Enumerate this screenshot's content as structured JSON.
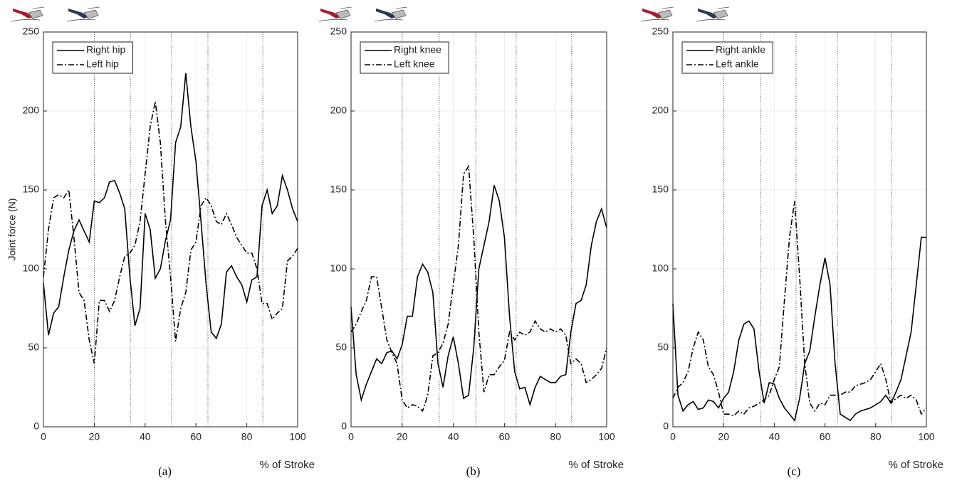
{
  "chart_data": [
    {
      "type": "line",
      "panel_label": "(a)",
      "xlabel": "% of Stroke",
      "ylabel": "Joint force (N)",
      "xlim": [
        0,
        100
      ],
      "ylim": [
        0,
        250
      ],
      "xticks": [
        0,
        20,
        40,
        60,
        80,
        100
      ],
      "yticks": [
        0,
        50,
        100,
        150,
        200,
        250
      ],
      "grid": true,
      "legend": "upper left",
      "phase_lines": [
        20,
        34.2,
        50.4,
        64.7,
        86.3
      ],
      "x": [
        0,
        2,
        4,
        6,
        8,
        10,
        12,
        14,
        16,
        18,
        20,
        22,
        24,
        26,
        28,
        30,
        32,
        34,
        36,
        38,
        40,
        42,
        44,
        46,
        48,
        50,
        52,
        54,
        56,
        58,
        60,
        62,
        64,
        66,
        68,
        70,
        72,
        74,
        76,
        78,
        80,
        82,
        84,
        86,
        88,
        90,
        92,
        94,
        96,
        98,
        100
      ],
      "series": [
        {
          "name": "Right hip",
          "color": "#000000",
          "linestyle": "solid",
          "values": [
            91,
            58,
            72,
            76,
            95,
            112,
            124,
            131,
            124,
            117,
            143,
            142,
            145,
            155,
            156,
            148,
            138,
            95,
            64,
            75,
            135,
            125,
            94,
            100,
            118,
            131,
            180,
            190,
            224,
            190,
            168,
            130,
            90,
            60,
            56,
            65,
            98,
            102,
            95,
            90,
            79,
            93,
            95,
            140,
            150,
            135,
            140,
            159,
            150,
            138,
            130
          ]
        },
        {
          "name": "Left hip",
          "color": "#000000",
          "linestyle": "dashdot",
          "values": [
            95,
            125,
            145,
            147,
            145,
            150,
            120,
            85,
            80,
            55,
            40,
            80,
            80,
            73,
            80,
            95,
            108,
            110,
            115,
            130,
            160,
            190,
            206,
            180,
            130,
            95,
            54,
            75,
            85,
            112,
            117,
            140,
            145,
            140,
            130,
            128,
            135,
            128,
            120,
            115,
            110,
            110,
            100,
            78,
            78,
            68,
            72,
            75,
            105,
            108,
            113
          ]
        }
      ]
    },
    {
      "type": "line",
      "panel_label": "(b)",
      "xlabel": "% of Stroke",
      "xlim": [
        0,
        100
      ],
      "ylim": [
        0,
        250
      ],
      "xticks": [
        0,
        20,
        40,
        60,
        80,
        100
      ],
      "yticks": [
        0,
        50,
        100,
        150,
        200,
        250
      ],
      "grid": true,
      "legend": "upper left",
      "phase_lines": [
        20,
        34.5,
        48.8,
        64.6,
        86.3
      ],
      "x": [
        0,
        2,
        4,
        6,
        8,
        10,
        12,
        14,
        16,
        18,
        20,
        22,
        24,
        26,
        28,
        30,
        32,
        34,
        36,
        38,
        40,
        42,
        44,
        46,
        48,
        50,
        52,
        54,
        56,
        58,
        60,
        62,
        64,
        66,
        68,
        70,
        72,
        74,
        76,
        78,
        80,
        82,
        84,
        86,
        88,
        90,
        92,
        94,
        96,
        98,
        100
      ],
      "series": [
        {
          "name": "Right knee",
          "color": "#000000",
          "linestyle": "solid",
          "values": [
            76,
            33,
            17,
            27,
            35,
            43,
            40,
            47,
            48,
            43,
            52,
            70,
            70,
            95,
            103,
            98,
            85,
            40,
            25,
            45,
            57,
            40,
            18,
            20,
            50,
            100,
            115,
            130,
            153,
            143,
            120,
            70,
            35,
            24,
            25,
            14,
            25,
            32,
            30,
            28,
            28,
            32,
            33,
            60,
            78,
            80,
            90,
            115,
            130,
            138,
            126
          ]
        },
        {
          "name": "Left knee",
          "color": "#000000",
          "linestyle": "dashdot",
          "values": [
            60,
            65,
            73,
            80,
            95,
            95,
            75,
            55,
            47,
            40,
            17,
            12,
            14,
            13,
            10,
            20,
            45,
            47,
            53,
            65,
            90,
            115,
            160,
            165,
            120,
            60,
            22,
            33,
            33,
            38,
            42,
            60,
            55,
            60,
            58,
            60,
            67,
            62,
            60,
            62,
            60,
            62,
            58,
            40,
            43,
            40,
            28,
            30,
            33,
            37,
            50
          ]
        }
      ]
    },
    {
      "type": "line",
      "panel_label": "(c)",
      "xlabel": "% of Stroke",
      "xlim": [
        0,
        100
      ],
      "ylim": [
        0,
        250
      ],
      "xticks": [
        0,
        20,
        40,
        60,
        80,
        100
      ],
      "yticks": [
        0,
        50,
        100,
        150,
        200,
        250
      ],
      "grid": true,
      "legend": "upper left",
      "phase_lines": [
        20,
        34.6,
        48.6,
        64.9,
        86.2
      ],
      "x": [
        0,
        2,
        4,
        6,
        8,
        10,
        12,
        14,
        16,
        18,
        20,
        22,
        24,
        26,
        28,
        30,
        32,
        34,
        36,
        38,
        40,
        42,
        44,
        46,
        48,
        50,
        52,
        54,
        56,
        58,
        60,
        62,
        64,
        66,
        68,
        70,
        72,
        74,
        76,
        78,
        80,
        82,
        84,
        86,
        88,
        90,
        92,
        94,
        96,
        98,
        100
      ],
      "series": [
        {
          "name": "Right ankle",
          "color": "#000000",
          "linestyle": "solid",
          "values": [
            78,
            20,
            10,
            14,
            16,
            11,
            12,
            17,
            16,
            12,
            18,
            22,
            35,
            55,
            65,
            67,
            62,
            35,
            15,
            28,
            27,
            18,
            12,
            8,
            4,
            18,
            40,
            48,
            70,
            90,
            107,
            90,
            40,
            8,
            6,
            4,
            8,
            10,
            11,
            12,
            14,
            16,
            20,
            15,
            22,
            30,
            45,
            60,
            90,
            120,
            120
          ]
        },
        {
          "name": "Left ankle",
          "color": "#000000",
          "linestyle": "dashdot",
          "values": [
            18,
            25,
            28,
            35,
            50,
            60,
            55,
            38,
            33,
            22,
            8,
            8,
            7,
            10,
            8,
            12,
            13,
            15,
            17,
            20,
            30,
            38,
            80,
            120,
            143,
            95,
            40,
            15,
            10,
            15,
            14,
            20,
            20,
            20,
            22,
            22,
            26,
            27,
            28,
            30,
            35,
            40,
            30,
            15,
            18,
            20,
            18,
            20,
            17,
            8,
            12
          ]
        }
      ]
    }
  ]
}
